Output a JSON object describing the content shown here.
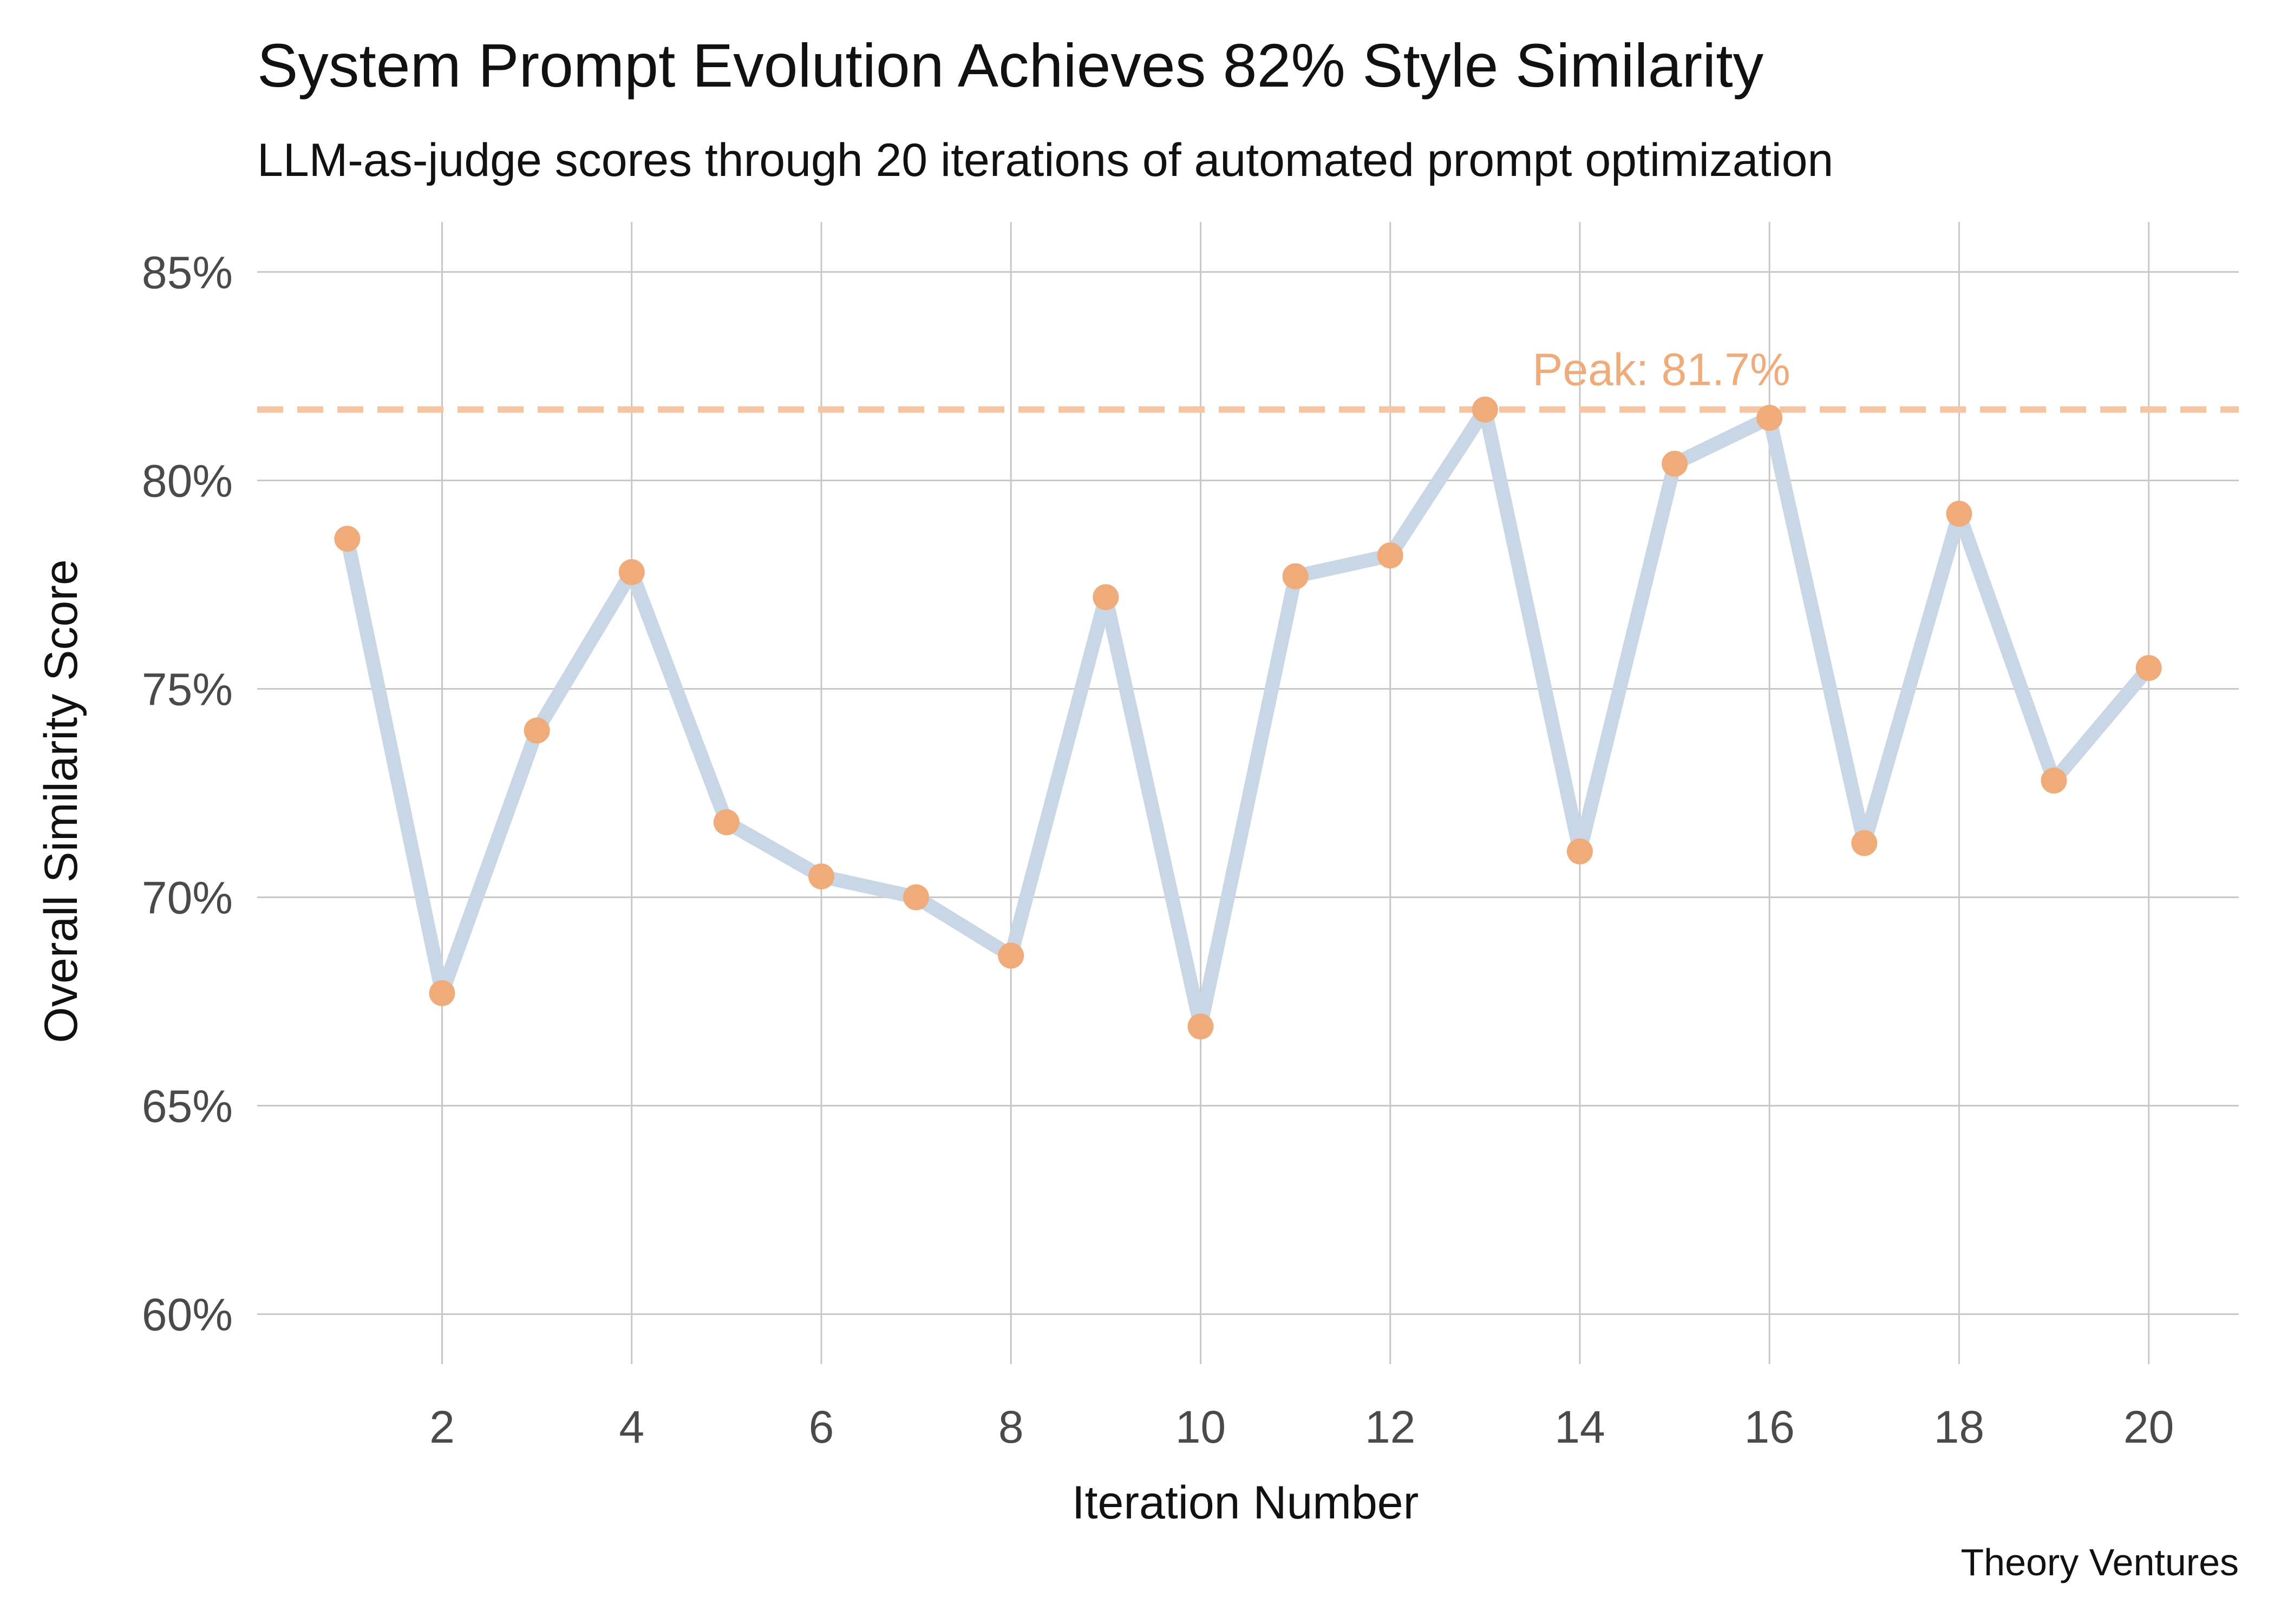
{
  "chart_data": {
    "type": "line",
    "title": "System Prompt Evolution Achieves 82% Style Similarity",
    "subtitle": "LLM-as-judge scores through 20 iterations of automated prompt optimization",
    "xlabel": "Iteration Number",
    "ylabel": "Overall Similarity Score",
    "xlim": [
      0.05,
      20.95
    ],
    "ylim": [
      58.8,
      86.2
    ],
    "x_ticks": [
      2,
      4,
      6,
      8,
      10,
      12,
      14,
      16,
      18,
      20
    ],
    "x_tick_labels": [
      "2",
      "4",
      "6",
      "8",
      "10",
      "12",
      "14",
      "16",
      "18",
      "20"
    ],
    "y_ticks": [
      60,
      65,
      70,
      75,
      80,
      85
    ],
    "y_tick_labels": [
      "60%",
      "65%",
      "70%",
      "75%",
      "80%",
      "85%"
    ],
    "grid": true,
    "series": [
      {
        "name": "Overall Similarity Score",
        "x": [
          1,
          2,
          3,
          4,
          5,
          6,
          7,
          8,
          9,
          10,
          11,
          12,
          13,
          14,
          15,
          16,
          17,
          18,
          19,
          20
        ],
        "values": [
          78.6,
          67.7,
          74.0,
          77.8,
          71.8,
          70.5,
          70.0,
          68.6,
          77.2,
          66.9,
          77.7,
          78.2,
          81.7,
          71.1,
          80.4,
          81.5,
          71.3,
          79.2,
          72.8,
          75.5
        ],
        "line_color": "#c8d6e5",
        "marker_color": "#efac7a"
      }
    ],
    "reference_line": {
      "y": 81.7,
      "style": "dashed",
      "color": "#f5c4a0",
      "label": "Peak: 81.7%",
      "label_color": "#efac7a",
      "label_x": 13.5
    },
    "caption": "Theory Ventures"
  }
}
